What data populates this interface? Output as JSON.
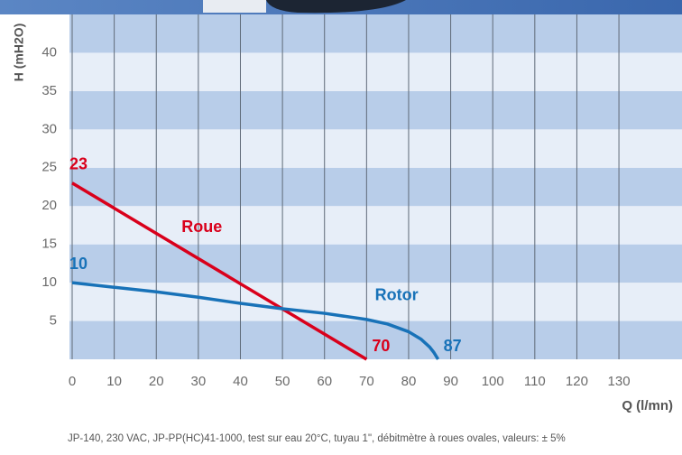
{
  "chart_data": {
    "type": "line",
    "ylabel": "H (mH2O)",
    "xlabel": "Q (l/mn)",
    "caption": "JP-140, 230 VAC, JP-PP(HC)41-1000, test sur eau 20°C, tuyau 1\", débitmètre à roues ovales, valeurs: ± 5%",
    "xlim": [
      0,
      145
    ],
    "ylim": [
      0,
      45
    ],
    "xticks": [
      0,
      10,
      20,
      30,
      40,
      50,
      60,
      70,
      80,
      90,
      100,
      110,
      120,
      130
    ],
    "yticks": [
      5,
      10,
      15,
      20,
      25,
      30,
      35,
      40
    ],
    "series": [
      {
        "name": "Roue",
        "color": "#d9001b",
        "x": [
          0,
          70
        ],
        "values": [
          23,
          0
        ],
        "start_label": "23",
        "end_label": "70"
      },
      {
        "name": "Rotor",
        "color": "#1872b8",
        "x": [
          0,
          10,
          20,
          30,
          40,
          50,
          60,
          70,
          75,
          80,
          83,
          85,
          86,
          87
        ],
        "values": [
          10,
          9.4,
          8.8,
          8.1,
          7.3,
          6.6,
          6,
          5.2,
          4.6,
          3.6,
          2.6,
          1.6,
          0.9,
          0
        ],
        "start_label": "10",
        "end_label": "87"
      }
    ]
  }
}
